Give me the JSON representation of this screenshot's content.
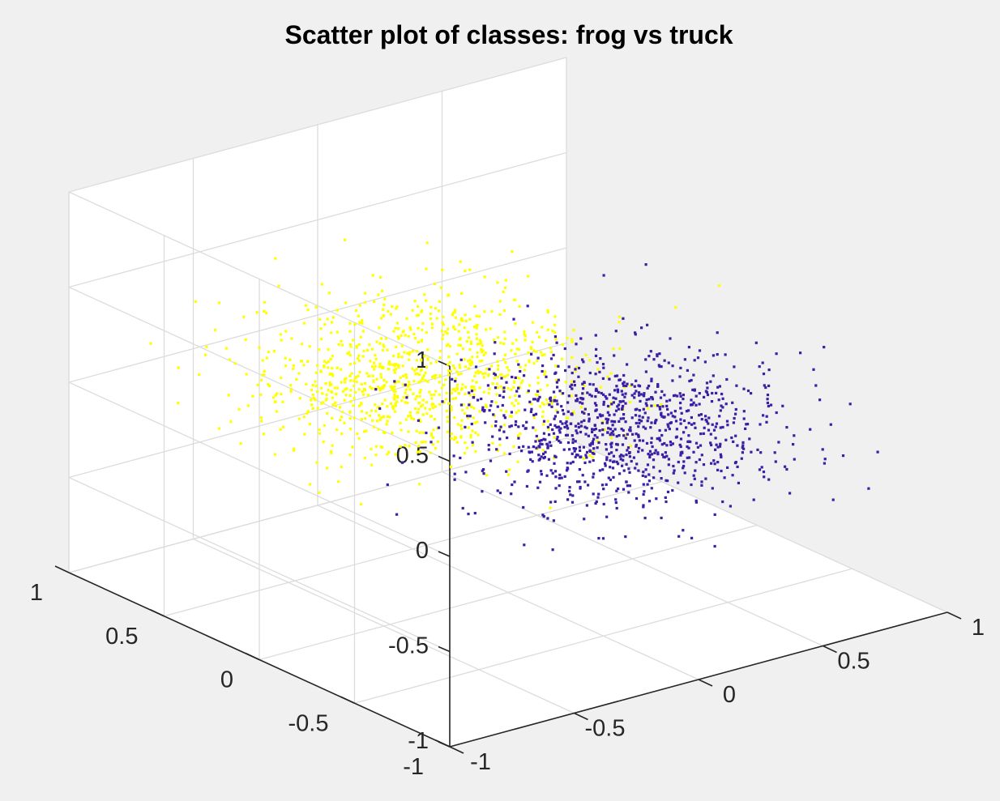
{
  "chart_data": {
    "type": "scatter",
    "dimensions": 3,
    "title": "Scatter plot of classes: frog vs truck",
    "xlabel": "",
    "ylabel": "",
    "zlabel": "",
    "xlim": [
      -1,
      1
    ],
    "ylim": [
      -1,
      1
    ],
    "zlim": [
      -1,
      1
    ],
    "ticks": {
      "x": [
        -1,
        -0.5,
        0,
        0.5,
        1
      ],
      "y": [
        -1,
        -0.5,
        0,
        0.5,
        1
      ],
      "z": [
        -1,
        -0.5,
        0,
        0.5,
        1
      ]
    },
    "tick_labels": {
      "x": [
        "-1",
        "-0.5",
        "0",
        "0.5",
        "1"
      ],
      "y": [
        "-1",
        "-0.5",
        "0",
        "0.5",
        "1"
      ],
      "z": [
        "-1",
        "-0.5",
        "0",
        "0.5",
        "1"
      ]
    },
    "grid": true,
    "legend": "none",
    "view": {
      "azimuth": -37.5,
      "elevation": 30
    },
    "series": [
      {
        "color": "#ffff00",
        "approx_count": 1000,
        "center": [
          -0.15,
          0.25,
          0.08
        ],
        "spread": [
          0.28,
          0.28,
          0.16
        ],
        "points": [
          [
            -0.42,
            0.38,
            0.03
          ],
          [
            -0.21,
            0.33,
            0.12
          ],
          [
            0.05,
            0.26,
            0.18
          ],
          [
            -0.3,
            0.12,
            -0.02
          ],
          [
            0.1,
            0.41,
            0.26
          ],
          [
            -0.55,
            0.2,
            0.09
          ],
          [
            0.21,
            0.08,
            0.05
          ],
          [
            -0.12,
            0.5,
            0.3
          ],
          [
            -0.35,
            -0.05,
            -0.12
          ],
          [
            0.02,
            0.15,
            0.4
          ],
          [
            -0.65,
            0.44,
            0.17
          ],
          [
            0.3,
            0.3,
            -0.05
          ]
        ]
      },
      {
        "color": "#3b1fa5",
        "approx_count": 1000,
        "center": [
          0.3,
          -0.2,
          -0.15
        ],
        "spread": [
          0.26,
          0.26,
          0.15
        ],
        "points": [
          [
            0.35,
            -0.1,
            -0.18
          ],
          [
            0.12,
            -0.3,
            -0.08
          ],
          [
            0.48,
            -0.25,
            -0.02
          ],
          [
            0.25,
            0.05,
            -0.25
          ],
          [
            0.55,
            -0.4,
            -0.3
          ],
          [
            0.05,
            -0.15,
            -0.12
          ],
          [
            0.4,
            -0.05,
            0.02
          ],
          [
            0.2,
            -0.45,
            -0.35
          ],
          [
            0.65,
            -0.2,
            -0.1
          ],
          [
            0.3,
            -0.28,
            0.08
          ],
          [
            -0.02,
            -0.35,
            -0.28
          ],
          [
            0.5,
            0.1,
            -0.2
          ]
        ]
      }
    ]
  }
}
